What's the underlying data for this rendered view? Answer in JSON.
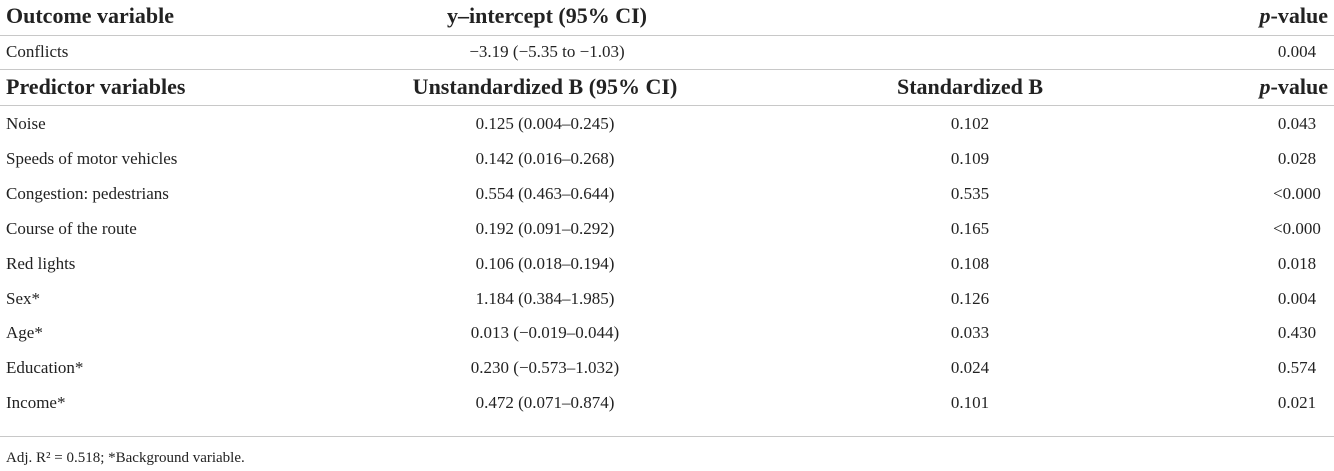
{
  "outcome_table": {
    "header": {
      "variable": "Outcome variable",
      "estimate": "y–intercept (95% CI)",
      "p_italic": "p",
      "p_rest": "-value"
    },
    "rows": [
      [
        "Conflicts",
        "−3.19 (−5.35 to −1.03)",
        "0.004"
      ]
    ]
  },
  "predictor_table": {
    "header": {
      "variable": "Predictor variables",
      "unstandardized": "Unstandardized B (95% CI)",
      "standardized": "Standardized B",
      "p_italic": "p",
      "p_rest": "-value"
    },
    "rows": [
      [
        "Noise",
        "0.125 (0.004–0.245)",
        "0.102",
        "0.043"
      ],
      [
        "Speeds of motor vehicles",
        "0.142 (0.016–0.268)",
        "0.109",
        "0.028"
      ],
      [
        "Congestion: pedestrians",
        "0.554 (0.463–0.644)",
        "0.535",
        "<0.000"
      ],
      [
        "Course of the route",
        "0.192 (0.091–0.292)",
        "0.165",
        "<0.000"
      ],
      [
        "Red lights",
        "0.106 (0.018–0.194)",
        "0.108",
        "0.018"
      ],
      [
        "Sex*",
        "1.184 (0.384–1.985)",
        "0.126",
        "0.004"
      ],
      [
        "Age*",
        "0.013 (−0.019–0.044)",
        "0.033",
        "0.430"
      ],
      [
        "Education*",
        "0.230 (−0.573–1.032)",
        "0.024",
        "0.574"
      ],
      [
        "Income*",
        "0.472 (0.071–0.874)",
        "0.101",
        "0.021"
      ]
    ]
  },
  "footnote": "Adj. R² = 0.518; *Background variable."
}
